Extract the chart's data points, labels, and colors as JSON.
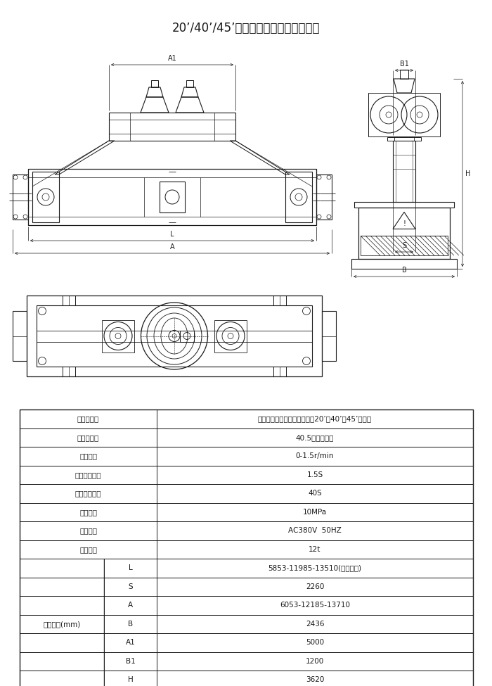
{
  "title": "20’/40’/45’伸縮式旋转集装笱专用吸具",
  "bg_color": "#ffffff",
  "lc": "#1a1a1a",
  "specs": [
    [
      "集装笱型号",
      "伸縮式旋转集装笱吸具（适劖20’、40’、45’吸具）"
    ],
    [
      "额定起重量",
      "40.5（单具下）"
    ],
    [
      "旋转速度",
      "0-1.5r/min"
    ],
    [
      "旋转动作时间",
      "1.5S"
    ],
    [
      "伸縮动作时间",
      "40S"
    ],
    [
      "液压系统",
      "10MPa"
    ],
    [
      "电源电压",
      "AC380V  50HZ"
    ],
    [
      "吸具自重",
      "12t"
    ]
  ],
  "main_dims_label": "主要尺寸(mm)",
  "main_dims": [
    [
      "L",
      "5853-11985-13510(液压伸縮)"
    ],
    [
      "S",
      "2260"
    ],
    [
      "A",
      "6053-12185-13710"
    ],
    [
      "B",
      "2436"
    ],
    [
      "A1",
      "5000"
    ],
    [
      "B1",
      "1200"
    ],
    [
      "H",
      "3620"
    ]
  ]
}
